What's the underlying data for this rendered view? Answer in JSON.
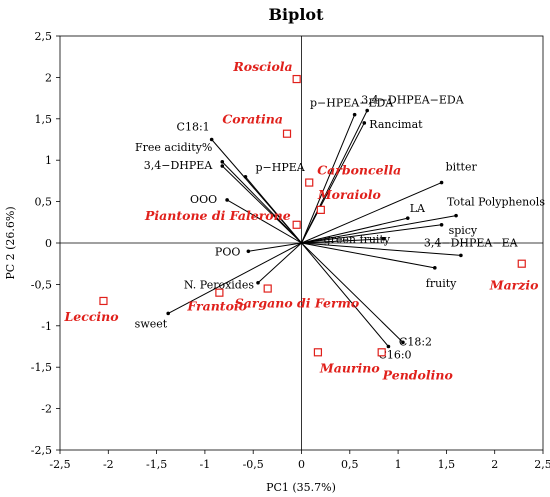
{
  "chart_data": {
    "type": "scatter",
    "title": "Biplot",
    "xlabel": "PC1 (35.7%)",
    "ylabel": "PC 2 (26.6%)",
    "xlim": [
      -2.5,
      2.5
    ],
    "ylim": [
      -2.5,
      2.5
    ],
    "xticks": [
      "-2,5",
      "-2",
      "-1,5",
      "-1",
      "-0,5",
      "0",
      "0,5",
      "1",
      "1,5",
      "2",
      "2,5"
    ],
    "yticks": [
      "2,5",
      "2",
      "1,5",
      "1",
      "0,5",
      "0",
      "-0,5",
      "-1",
      "-1,5",
      "-2",
      "-2,5"
    ],
    "grid": false,
    "marker_color": "#e0201b",
    "vector_color": "#000000",
    "observations": [
      {
        "label": "Rosciola",
        "x": -0.05,
        "y": 1.98
      },
      {
        "label": "Coratina",
        "x": -0.15,
        "y": 1.32
      },
      {
        "label": "Carboncella",
        "x": 0.08,
        "y": 0.73
      },
      {
        "label": "Moraiolo",
        "x": 0.2,
        "y": 0.4
      },
      {
        "label": "Piantone di Falerone",
        "x": -0.05,
        "y": 0.22
      },
      {
        "label": "Sargano di Fermo",
        "x": -0.35,
        "y": -0.55
      },
      {
        "label": "Frantoio",
        "x": -0.85,
        "y": -0.6
      },
      {
        "label": "Leccino",
        "x": -2.05,
        "y": -0.7
      },
      {
        "label": "Maurino",
        "x": 0.17,
        "y": -1.32
      },
      {
        "label": "Pendolino",
        "x": 0.83,
        "y": -1.32
      },
      {
        "label": "Marzio",
        "x": 2.28,
        "y": -0.25
      }
    ],
    "variables": [
      {
        "label": "C18:1",
        "x": -0.93,
        "y": 1.25
      },
      {
        "label": "Free acidity%",
        "x": -0.82,
        "y": 0.98
      },
      {
        "label": "3,4−DHPEA",
        "x": -0.82,
        "y": 0.93
      },
      {
        "label": "p−HPEA",
        "x": -0.58,
        "y": 0.8
      },
      {
        "label": "OOO",
        "x": -0.77,
        "y": 0.52
      },
      {
        "label": "POO",
        "x": -0.55,
        "y": -0.1
      },
      {
        "label": "N. Peroxides",
        "x": -0.45,
        "y": -0.48
      },
      {
        "label": "sweet",
        "x": -1.38,
        "y": -0.85
      },
      {
        "label": "p−HPEA−EDA",
        "x": 0.55,
        "y": 1.55
      },
      {
        "label": "3,4−DHPEA−EDA",
        "x": 0.68,
        "y": 1.6
      },
      {
        "label": "Rancimat",
        "x": 0.65,
        "y": 1.45
      },
      {
        "label": "bitter",
        "x": 1.45,
        "y": 0.73
      },
      {
        "label": "LA",
        "x": 1.1,
        "y": 0.3
      },
      {
        "label": "Total Polyphenols",
        "x": 1.6,
        "y": 0.33
      },
      {
        "label": "spicy",
        "x": 1.45,
        "y": 0.22
      },
      {
        "label": "green fruity",
        "x": 0.85,
        "y": 0.05
      },
      {
        "label": "3,4−DHPEA−EA",
        "x": 1.65,
        "y": -0.15
      },
      {
        "label": "fruity",
        "x": 1.38,
        "y": -0.3
      },
      {
        "label": "C18:2",
        "x": 1.05,
        "y": -1.2
      },
      {
        "label": "C16:0",
        "x": 0.9,
        "y": -1.25
      }
    ]
  }
}
